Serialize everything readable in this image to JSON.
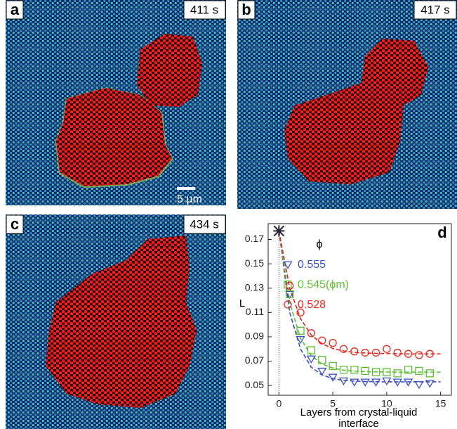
{
  "panels": [
    {
      "label": "a",
      "time": "411 s"
    },
    {
      "label": "b",
      "time": "417 s"
    },
    {
      "label": "c",
      "time": "434 s"
    }
  ],
  "scale_bar": "5 µm",
  "chart_data": {
    "type": "scatter",
    "panel_label": "d",
    "legend_title": "ϕ",
    "ylabel": "L",
    "xlabel": [
      "Layers from crystal-liquid",
      "interface"
    ],
    "xlim": [
      -1,
      16
    ],
    "xticks": [
      0,
      5,
      10,
      15
    ],
    "ylim": [
      0.042,
      0.183
    ],
    "yticks": [
      0.05,
      0.07,
      0.09,
      0.11,
      0.13,
      0.15,
      0.17
    ],
    "origin_point": {
      "x": 0,
      "y": 0.177
    },
    "x": [
      1,
      2,
      3,
      4,
      5,
      6,
      7,
      8,
      9,
      10,
      11,
      12,
      13,
      14
    ],
    "series": [
      {
        "name": "0.555",
        "color": "#3b4fc4",
        "marker": "triangle",
        "values": [
          0.125,
          0.088,
          0.072,
          0.062,
          0.057,
          0.054,
          0.053,
          0.053,
          0.053,
          0.054,
          0.053,
          0.053,
          0.051,
          0.052
        ]
      },
      {
        "name": "0.545(ϕm)",
        "color": "#5cc032",
        "marker": "square",
        "values": [
          0.125,
          0.095,
          0.079,
          0.071,
          0.066,
          0.063,
          0.063,
          0.062,
          0.061,
          0.061,
          0.06,
          0.063,
          0.062,
          0.06
        ]
      },
      {
        "name": "0.528",
        "color": "#e8261e",
        "marker": "circle",
        "values": [
          0.132,
          0.11,
          0.093,
          0.087,
          0.085,
          0.08,
          0.078,
          0.077,
          0.077,
          0.08,
          0.077,
          0.076,
          0.075,
          0.076
        ]
      }
    ],
    "fit_x": [
      0,
      1,
      2,
      3,
      4,
      5,
      6,
      7,
      8,
      9,
      10,
      11,
      12,
      13,
      14,
      15
    ],
    "fits": [
      {
        "color": "#3b4fc4",
        "values": [
          0.177,
          0.11,
          0.08,
          0.065,
          0.0587,
          0.0557,
          0.0542,
          0.0536,
          0.0533,
          0.0531,
          0.053,
          0.053,
          0.053,
          0.053,
          0.053,
          0.053
        ]
      },
      {
        "color": "#5cc032",
        "values": [
          0.177,
          0.118,
          0.0888,
          0.0746,
          0.0677,
          0.0643,
          0.0626,
          0.0618,
          0.0614,
          0.0612,
          0.0611,
          0.061,
          0.061,
          0.061,
          0.061,
          0.061
        ]
      },
      {
        "color": "#e8261e",
        "values": [
          0.177,
          0.13,
          0.105,
          0.0915,
          0.0843,
          0.0804,
          0.0784,
          0.0773,
          0.0767,
          0.0764,
          0.0762,
          0.0761,
          0.076,
          0.076,
          0.076,
          0.076
        ]
      }
    ]
  }
}
